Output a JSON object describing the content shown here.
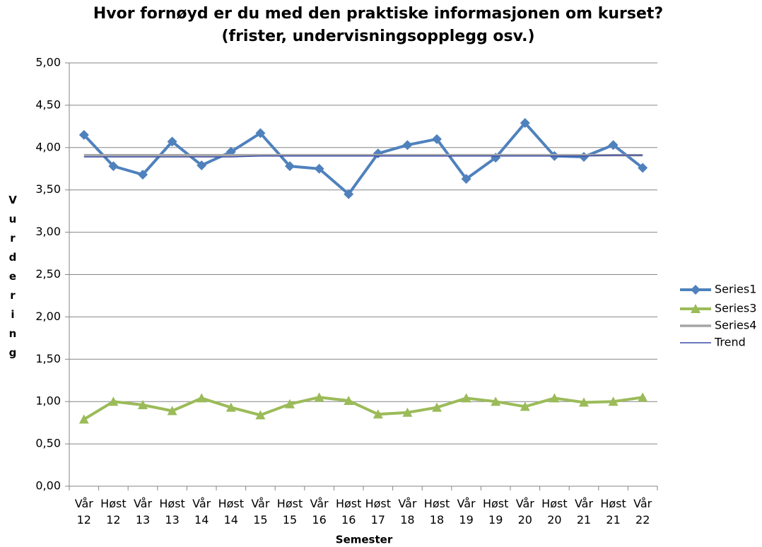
{
  "chart_data": {
    "type": "line",
    "title": [
      "Hvor fornøyd er du med den praktiske informasjonen om kurset?",
      "(frister, undervisningsopplegg osv.)"
    ],
    "x_label": "Semester",
    "y_label": "Vurdering",
    "categories": [
      "Vår 12",
      "Høst 12",
      "Vår 13",
      "Høst 13",
      "Vår 14",
      "Høst 14",
      "Vår 15",
      "Høst 15",
      "Vår 16",
      "Høst 16",
      "Høst 17",
      "Vår 18",
      "Høst 18",
      "Vår 19",
      "Høst 19",
      "Vår 20",
      "Høst 20",
      "Vår 21",
      "Høst 21",
      "Vår 22"
    ],
    "series": [
      {
        "name": "Series1",
        "color": "#4f81bd",
        "marker": "diamond",
        "values": [
          4.15,
          3.78,
          3.68,
          4.07,
          3.79,
          3.95,
          4.17,
          3.78,
          3.75,
          3.45,
          3.93,
          4.03,
          4.1,
          3.63,
          3.88,
          4.29,
          3.9,
          3.89,
          4.03,
          3.76
        ]
      },
      {
        "name": "Series3",
        "color": "#9bbb59",
        "marker": "triangle",
        "values": [
          0.79,
          1.0,
          0.96,
          0.89,
          1.04,
          0.93,
          0.84,
          0.97,
          1.05,
          1.01,
          0.85,
          0.87,
          0.93,
          1.04,
          1.0,
          0.94,
          1.04,
          0.99,
          1.0,
          1.05
        ]
      },
      {
        "name": "Series4",
        "color": "#a6a6a6",
        "marker": "none",
        "values": [
          3.91,
          3.91,
          3.91,
          3.91,
          3.91,
          3.91,
          3.91,
          3.91,
          3.91,
          3.91,
          3.91,
          3.91,
          3.91,
          3.91,
          3.91,
          3.91,
          3.91,
          3.91,
          3.91,
          3.91
        ]
      },
      {
        "name": "Trend",
        "color": "#3a4aa8",
        "marker": "none",
        "values": [
          3.89,
          3.89,
          3.89,
          3.89,
          3.89,
          3.89,
          3.9,
          3.9,
          3.9,
          3.9,
          3.9,
          3.9,
          3.9,
          3.9,
          3.9,
          3.9,
          3.9,
          3.9,
          3.91,
          3.91
        ]
      }
    ],
    "ylim": [
      0,
      5
    ],
    "yticks": [
      {
        "value": 0,
        "label": "0,00"
      },
      {
        "value": 0.5,
        "label": "0,50"
      },
      {
        "value": 1,
        "label": "1,00"
      },
      {
        "value": 1.5,
        "label": "1,50"
      },
      {
        "value": 2,
        "label": "2,00"
      },
      {
        "value": 2.5,
        "label": "2,50"
      },
      {
        "value": 3,
        "label": "3,00"
      },
      {
        "value": 3.5,
        "label": "3,50"
      },
      {
        "value": 4,
        "label": "4,00"
      },
      {
        "value": 4.5,
        "label": "4,50"
      },
      {
        "value": 5,
        "label": "5,00"
      }
    ],
    "grid": true,
    "legend": "right"
  }
}
